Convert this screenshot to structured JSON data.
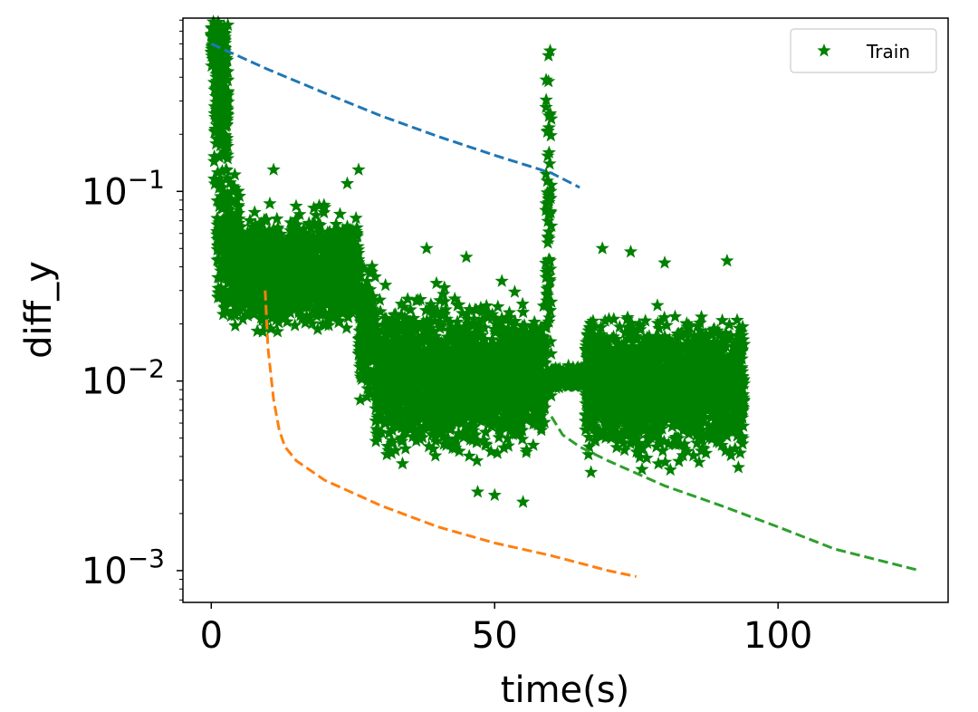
{
  "chart_data": {
    "type": "scatter",
    "xlabel": "time(s)",
    "ylabel": "diff_y",
    "xlim": [
      -5,
      130
    ],
    "ylim": [
      0.00068,
      0.82
    ],
    "yscale": "log",
    "x_ticks": [
      0,
      50,
      100
    ],
    "x_tick_labels": [
      "0",
      "50",
      "100"
    ],
    "y_ticks": [
      0.001,
      0.01,
      0.1
    ],
    "y_tick_labels": [
      {
        "base": "10",
        "exp": "−3"
      },
      {
        "base": "10",
        "exp": "−2"
      },
      {
        "base": "10",
        "exp": "−1"
      }
    ],
    "legend": {
      "placement": "top-right",
      "entries": [
        {
          "label": "Train",
          "marker": "star",
          "color": "#008000"
        }
      ]
    },
    "grid": false,
    "series": [
      {
        "name": "Train",
        "kind": "scatter",
        "marker": "star",
        "color": "#008000",
        "segments": [
          {
            "x": [
              0,
              2.5
            ],
            "y_median": 0.6,
            "y_spread": 0.1
          },
          {
            "x": [
              0.5,
              3
            ],
            "y_median": 0.3,
            "y_spread": 0.35
          },
          {
            "x": [
              1,
              5
            ],
            "y_median": 0.05,
            "y_spread": 0.3
          },
          {
            "x": [
              4,
              26
            ],
            "y_median": 0.038,
            "y_spread": 0.22
          },
          {
            "x": [
              26,
              29
            ],
            "y_median": 0.018,
            "y_spread": 0.28
          },
          {
            "x": [
              29,
              59
            ],
            "y_median": 0.0105,
            "y_spread": 0.3
          },
          {
            "x": [
              59,
              60
            ],
            "y_median": 0.06,
            "y_spread": 0.8
          },
          {
            "x": [
              60,
              66
            ],
            "y_median": 0.0105,
            "y_spread": 0.04
          },
          {
            "x": [
              66,
              94
            ],
            "y_median": 0.0095,
            "y_spread": 0.28
          }
        ],
        "outliers": [
          {
            "x": 59.5,
            "y": 0.52
          },
          {
            "x": 59.5,
            "y": 0.38
          },
          {
            "x": 59.6,
            "y": 0.25
          },
          {
            "x": 59.6,
            "y": 0.16
          },
          {
            "x": 2.5,
            "y": 0.25
          },
          {
            "x": 26,
            "y": 0.13
          },
          {
            "x": 24,
            "y": 0.11
          },
          {
            "x": 11,
            "y": 0.13
          },
          {
            "x": 45,
            "y": 0.045
          },
          {
            "x": 38,
            "y": 0.05
          },
          {
            "x": 50,
            "y": 0.0025
          },
          {
            "x": 55,
            "y": 0.0023
          },
          {
            "x": 47,
            "y": 0.0026
          },
          {
            "x": 67,
            "y": 0.0033
          },
          {
            "x": 81,
            "y": 0.0034
          },
          {
            "x": 93,
            "y": 0.0035
          },
          {
            "x": 69,
            "y": 0.05
          },
          {
            "x": 74,
            "y": 0.048
          },
          {
            "x": 80,
            "y": 0.042
          },
          {
            "x": 91,
            "y": 0.043
          }
        ]
      },
      {
        "name": "",
        "kind": "line",
        "style": "dashed",
        "color": "#1f77b4",
        "x": [
          0,
          10,
          20,
          30,
          40,
          50,
          60,
          65
        ],
        "y": [
          0.6,
          0.44,
          0.33,
          0.25,
          0.195,
          0.155,
          0.125,
          0.105
        ]
      },
      {
        "name": "",
        "kind": "line",
        "style": "dashed",
        "color": "#ff7f0e",
        "x": [
          9.5,
          10,
          11,
          12,
          13,
          15,
          20,
          30,
          40,
          50,
          60,
          70,
          75
        ],
        "y": [
          0.03,
          0.015,
          0.008,
          0.0055,
          0.0045,
          0.0038,
          0.003,
          0.0022,
          0.0017,
          0.0014,
          0.0012,
          0.001,
          0.00093
        ]
      },
      {
        "name": "",
        "kind": "line",
        "style": "dashed",
        "color": "#2ca02c",
        "x": [
          60,
          62,
          65,
          70,
          80,
          90,
          100,
          110,
          125
        ],
        "y": [
          0.0065,
          0.0052,
          0.0045,
          0.0038,
          0.0028,
          0.0022,
          0.0017,
          0.0013,
          0.001
        ]
      }
    ]
  }
}
